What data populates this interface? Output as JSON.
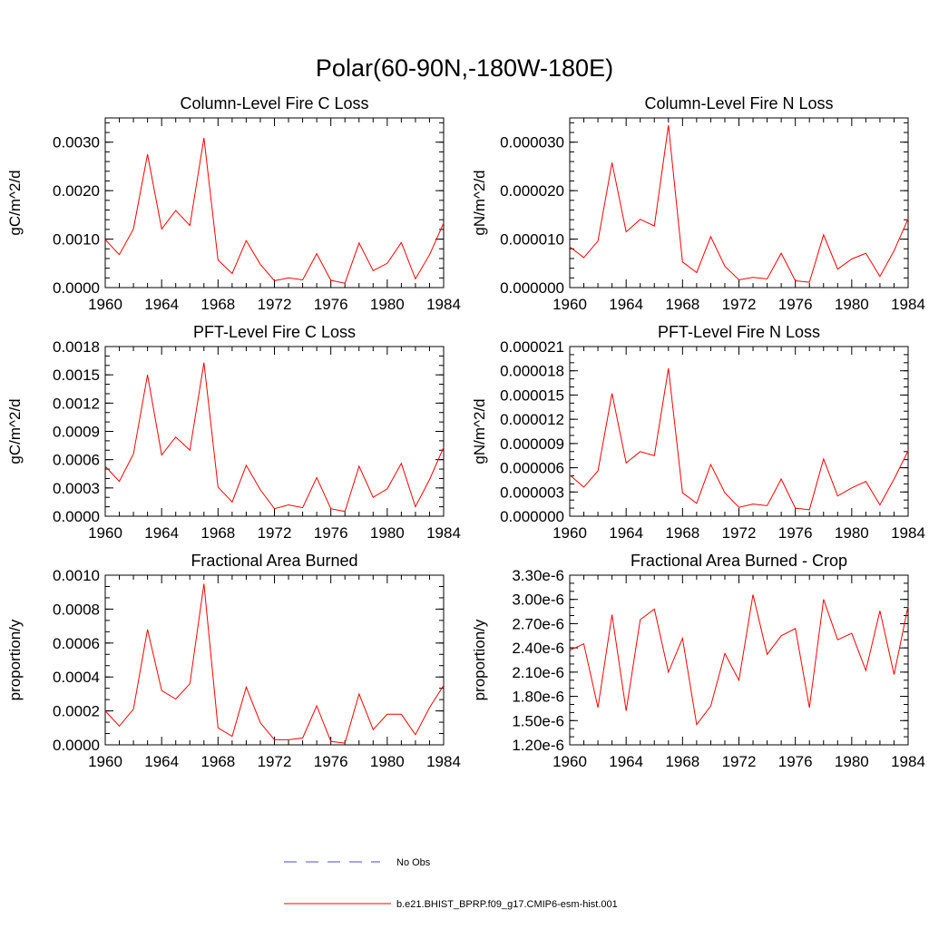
{
  "figure": {
    "title": "Polar(60-90N,-180W-180E)",
    "line_color": "#ff0000",
    "obs_color": "#4a4ad8"
  },
  "legend": {
    "placement": "bottom-center",
    "entries": [
      {
        "label": "No Obs",
        "style": "dashed",
        "color": "#4a4ad8"
      },
      {
        "label": "b.e21.BHIST_BPRP.f09_g17.CMIP6-esm-hist.001",
        "style": "solid",
        "color": "#ff0000"
      }
    ]
  },
  "chart_data": [
    {
      "type": "line",
      "title": "Column-Level Fire C Loss",
      "ylabel": "gC/m^2/d",
      "xlim": [
        1960,
        1984
      ],
      "ylim": [
        0,
        0.0035
      ],
      "xticks": [
        "1960",
        "1964",
        "1968",
        "1972",
        "1976",
        "1980",
        "1984"
      ],
      "yticks": [
        {
          "v": 0,
          "label": "0.0000"
        },
        {
          "v": 0.001,
          "label": "0.0010"
        },
        {
          "v": 0.002,
          "label": "0.0020"
        },
        {
          "v": 0.003,
          "label": "0.0030"
        }
      ],
      "x": [
        1960,
        1961,
        1962,
        1963,
        1964,
        1965,
        1966,
        1967,
        1968,
        1969,
        1970,
        1971,
        1972,
        1973,
        1974,
        1975,
        1976,
        1977,
        1978,
        1979,
        1980,
        1981,
        1982,
        1983,
        1984
      ],
      "series": [
        {
          "values": [
            0.00099,
            0.00068,
            0.00121,
            0.00275,
            0.00121,
            0.00159,
            0.00128,
            0.00309,
            0.00057,
            0.00029,
            0.00097,
            0.00048,
            0.00014,
            0.0002,
            0.00016,
            0.0007,
            0.00015,
            9e-05,
            0.00092,
            0.00035,
            0.0005,
            0.00093,
            0.00018,
            0.00068,
            0.00133
          ]
        }
      ]
    },
    {
      "type": "line",
      "title": "Column-Level Fire N Loss",
      "ylabel": "gN/m^2/d",
      "xlim": [
        1960,
        1984
      ],
      "ylim": [
        0,
        3.5e-05
      ],
      "xticks": [
        "1960",
        "1964",
        "1968",
        "1972",
        "1976",
        "1980",
        "1984"
      ],
      "yticks": [
        {
          "v": 0,
          "label": "0.000000"
        },
        {
          "v": 1e-05,
          "label": "0.000010"
        },
        {
          "v": 2e-05,
          "label": "0.000020"
        },
        {
          "v": 3e-05,
          "label": "0.000030"
        }
      ],
      "x": [
        1960,
        1961,
        1962,
        1963,
        1964,
        1965,
        1966,
        1967,
        1968,
        1969,
        1970,
        1971,
        1972,
        1973,
        1974,
        1975,
        1976,
        1977,
        1978,
        1979,
        1980,
        1981,
        1982,
        1983,
        1984
      ],
      "series": [
        {
          "values": [
            8.4e-06,
            6.2e-06,
            9.6e-06,
            2.58e-05,
            1.15e-05,
            1.41e-05,
            1.27e-05,
            3.35e-05,
            5.3e-06,
            3.1e-06,
            1.05e-05,
            4.4e-06,
            1.6e-06,
            2.1e-06,
            1.8e-06,
            7.1e-06,
            1.4e-06,
            1.1e-06,
            1.09e-05,
            3.8e-06,
            5.9e-06,
            7.1e-06,
            2.3e-06,
            7.6e-06,
            1.42e-05
          ]
        }
      ]
    },
    {
      "type": "line",
      "title": "PFT-Level Fire C Loss",
      "ylabel": "gC/m^2/d",
      "xlim": [
        1960,
        1984
      ],
      "ylim": [
        0,
        0.0018
      ],
      "xticks": [
        "1960",
        "1964",
        "1968",
        "1972",
        "1976",
        "1980",
        "1984"
      ],
      "yticks": [
        {
          "v": 0,
          "label": "0.0000"
        },
        {
          "v": 0.0003,
          "label": "0.0003"
        },
        {
          "v": 0.0006,
          "label": "0.0006"
        },
        {
          "v": 0.0009,
          "label": "0.0009"
        },
        {
          "v": 0.0012,
          "label": "0.0012"
        },
        {
          "v": 0.0015,
          "label": "0.0015"
        },
        {
          "v": 0.0018,
          "label": "0.0018"
        }
      ],
      "x": [
        1960,
        1961,
        1962,
        1963,
        1964,
        1965,
        1966,
        1967,
        1968,
        1969,
        1970,
        1971,
        1972,
        1973,
        1974,
        1975,
        1976,
        1977,
        1978,
        1979,
        1980,
        1981,
        1982,
        1983,
        1984
      ],
      "series": [
        {
          "values": [
            0.00053,
            0.00037,
            0.00066,
            0.0015,
            0.00065,
            0.00084,
            0.0007,
            0.00163,
            0.00031,
            0.00015,
            0.00054,
            0.00028,
            8e-05,
            0.00012,
            9e-05,
            0.00041,
            8e-05,
            5e-05,
            0.00053,
            0.0002,
            0.00029,
            0.00056,
            0.0001,
            0.00039,
            0.00073
          ]
        }
      ]
    },
    {
      "type": "line",
      "title": "PFT-Level Fire N Loss",
      "ylabel": "gN/m^2/d",
      "xlim": [
        1960,
        1984
      ],
      "ylim": [
        0,
        2.1e-05
      ],
      "xticks": [
        "1960",
        "1964",
        "1968",
        "1972",
        "1976",
        "1980",
        "1984"
      ],
      "yticks": [
        {
          "v": 0,
          "label": "0.000000"
        },
        {
          "v": 3e-06,
          "label": "0.000003"
        },
        {
          "v": 6e-06,
          "label": "0.000006"
        },
        {
          "v": 9e-06,
          "label": "0.000009"
        },
        {
          "v": 1.2e-05,
          "label": "0.000012"
        },
        {
          "v": 1.5e-05,
          "label": "0.000015"
        },
        {
          "v": 1.8e-05,
          "label": "0.000018"
        },
        {
          "v": 2.1e-05,
          "label": "0.000021"
        }
      ],
      "x": [
        1960,
        1961,
        1962,
        1963,
        1964,
        1965,
        1966,
        1967,
        1968,
        1969,
        1970,
        1971,
        1972,
        1973,
        1974,
        1975,
        1976,
        1977,
        1978,
        1979,
        1980,
        1981,
        1982,
        1983,
        1984
      ],
      "series": [
        {
          "values": [
            5.1e-06,
            3.6e-06,
            5.6e-06,
            1.52e-05,
            6.6e-06,
            8e-06,
            7.5e-06,
            1.83e-05,
            2.9e-06,
            1.6e-06,
            6.4e-06,
            2.9e-06,
            1.1e-06,
            1.5e-06,
            1.3e-06,
            4.6e-06,
            1e-06,
            8e-07,
            7.1e-06,
            2.5e-06,
            3.5e-06,
            4.3e-06,
            1.4e-06,
            4.6e-06,
            8.1e-06
          ]
        }
      ]
    },
    {
      "type": "line",
      "title": "Fractional Area Burned",
      "ylabel": "proportion/y",
      "xlim": [
        1960,
        1984
      ],
      "ylim": [
        0,
        0.001
      ],
      "xticks": [
        "1960",
        "1964",
        "1968",
        "1972",
        "1976",
        "1980",
        "1984"
      ],
      "yticks": [
        {
          "v": 0,
          "label": "0.0000"
        },
        {
          "v": 0.0002,
          "label": "0.0002"
        },
        {
          "v": 0.0004,
          "label": "0.0004"
        },
        {
          "v": 0.0006,
          "label": "0.0006"
        },
        {
          "v": 0.0008,
          "label": "0.0008"
        },
        {
          "v": 0.001,
          "label": "0.0010"
        }
      ],
      "x": [
        1960,
        1961,
        1962,
        1963,
        1964,
        1965,
        1966,
        1967,
        1968,
        1969,
        1970,
        1971,
        1972,
        1973,
        1974,
        1975,
        1976,
        1977,
        1978,
        1979,
        1980,
        1981,
        1982,
        1983,
        1984
      ],
      "series": [
        {
          "values": [
            0.0002,
            0.00011,
            0.00021,
            0.00068,
            0.00032,
            0.00027,
            0.00036,
            0.00095,
            0.0001,
            5e-05,
            0.00034,
            0.00013,
            3e-05,
            3e-05,
            4e-05,
            0.00023,
            2e-05,
            1e-05,
            0.0003,
            9e-05,
            0.00018,
            0.00018,
            6e-05,
            0.00022,
            0.00035
          ]
        }
      ]
    },
    {
      "type": "line",
      "title": "Fractional Area Burned - Crop",
      "ylabel": "proportion/y",
      "xlim": [
        1960,
        1984
      ],
      "ylim": [
        1.2e-06,
        3.3e-06
      ],
      "xticks": [
        "1960",
        "1964",
        "1968",
        "1972",
        "1976",
        "1980",
        "1984"
      ],
      "yticks": [
        {
          "v": 1.2e-06,
          "label": "1.20e-6"
        },
        {
          "v": 1.5e-06,
          "label": "1.50e-6"
        },
        {
          "v": 1.8e-06,
          "label": "1.80e-6"
        },
        {
          "v": 2.1e-06,
          "label": "2.10e-6"
        },
        {
          "v": 2.4e-06,
          "label": "2.40e-6"
        },
        {
          "v": 2.7e-06,
          "label": "2.70e-6"
        },
        {
          "v": 3e-06,
          "label": "3.00e-6"
        },
        {
          "v": 3.3e-06,
          "label": "3.30e-6"
        }
      ],
      "x": [
        1960,
        1961,
        1962,
        1963,
        1964,
        1965,
        1966,
        1967,
        1968,
        1969,
        1970,
        1971,
        1972,
        1973,
        1974,
        1975,
        1976,
        1977,
        1978,
        1979,
        1980,
        1981,
        1982,
        1983,
        1984
      ],
      "series": [
        {
          "values": [
            2.37e-06,
            2.45e-06,
            1.66e-06,
            2.81e-06,
            1.62e-06,
            2.75e-06,
            2.88e-06,
            2.1e-06,
            2.52e-06,
            1.45e-06,
            1.68e-06,
            2.33e-06,
            2e-06,
            3.06e-06,
            2.32e-06,
            2.55e-06,
            2.64e-06,
            1.66e-06,
            3e-06,
            2.5e-06,
            2.58e-06,
            2.12e-06,
            2.86e-06,
            2.07e-06,
            2.92e-06
          ]
        }
      ]
    }
  ]
}
